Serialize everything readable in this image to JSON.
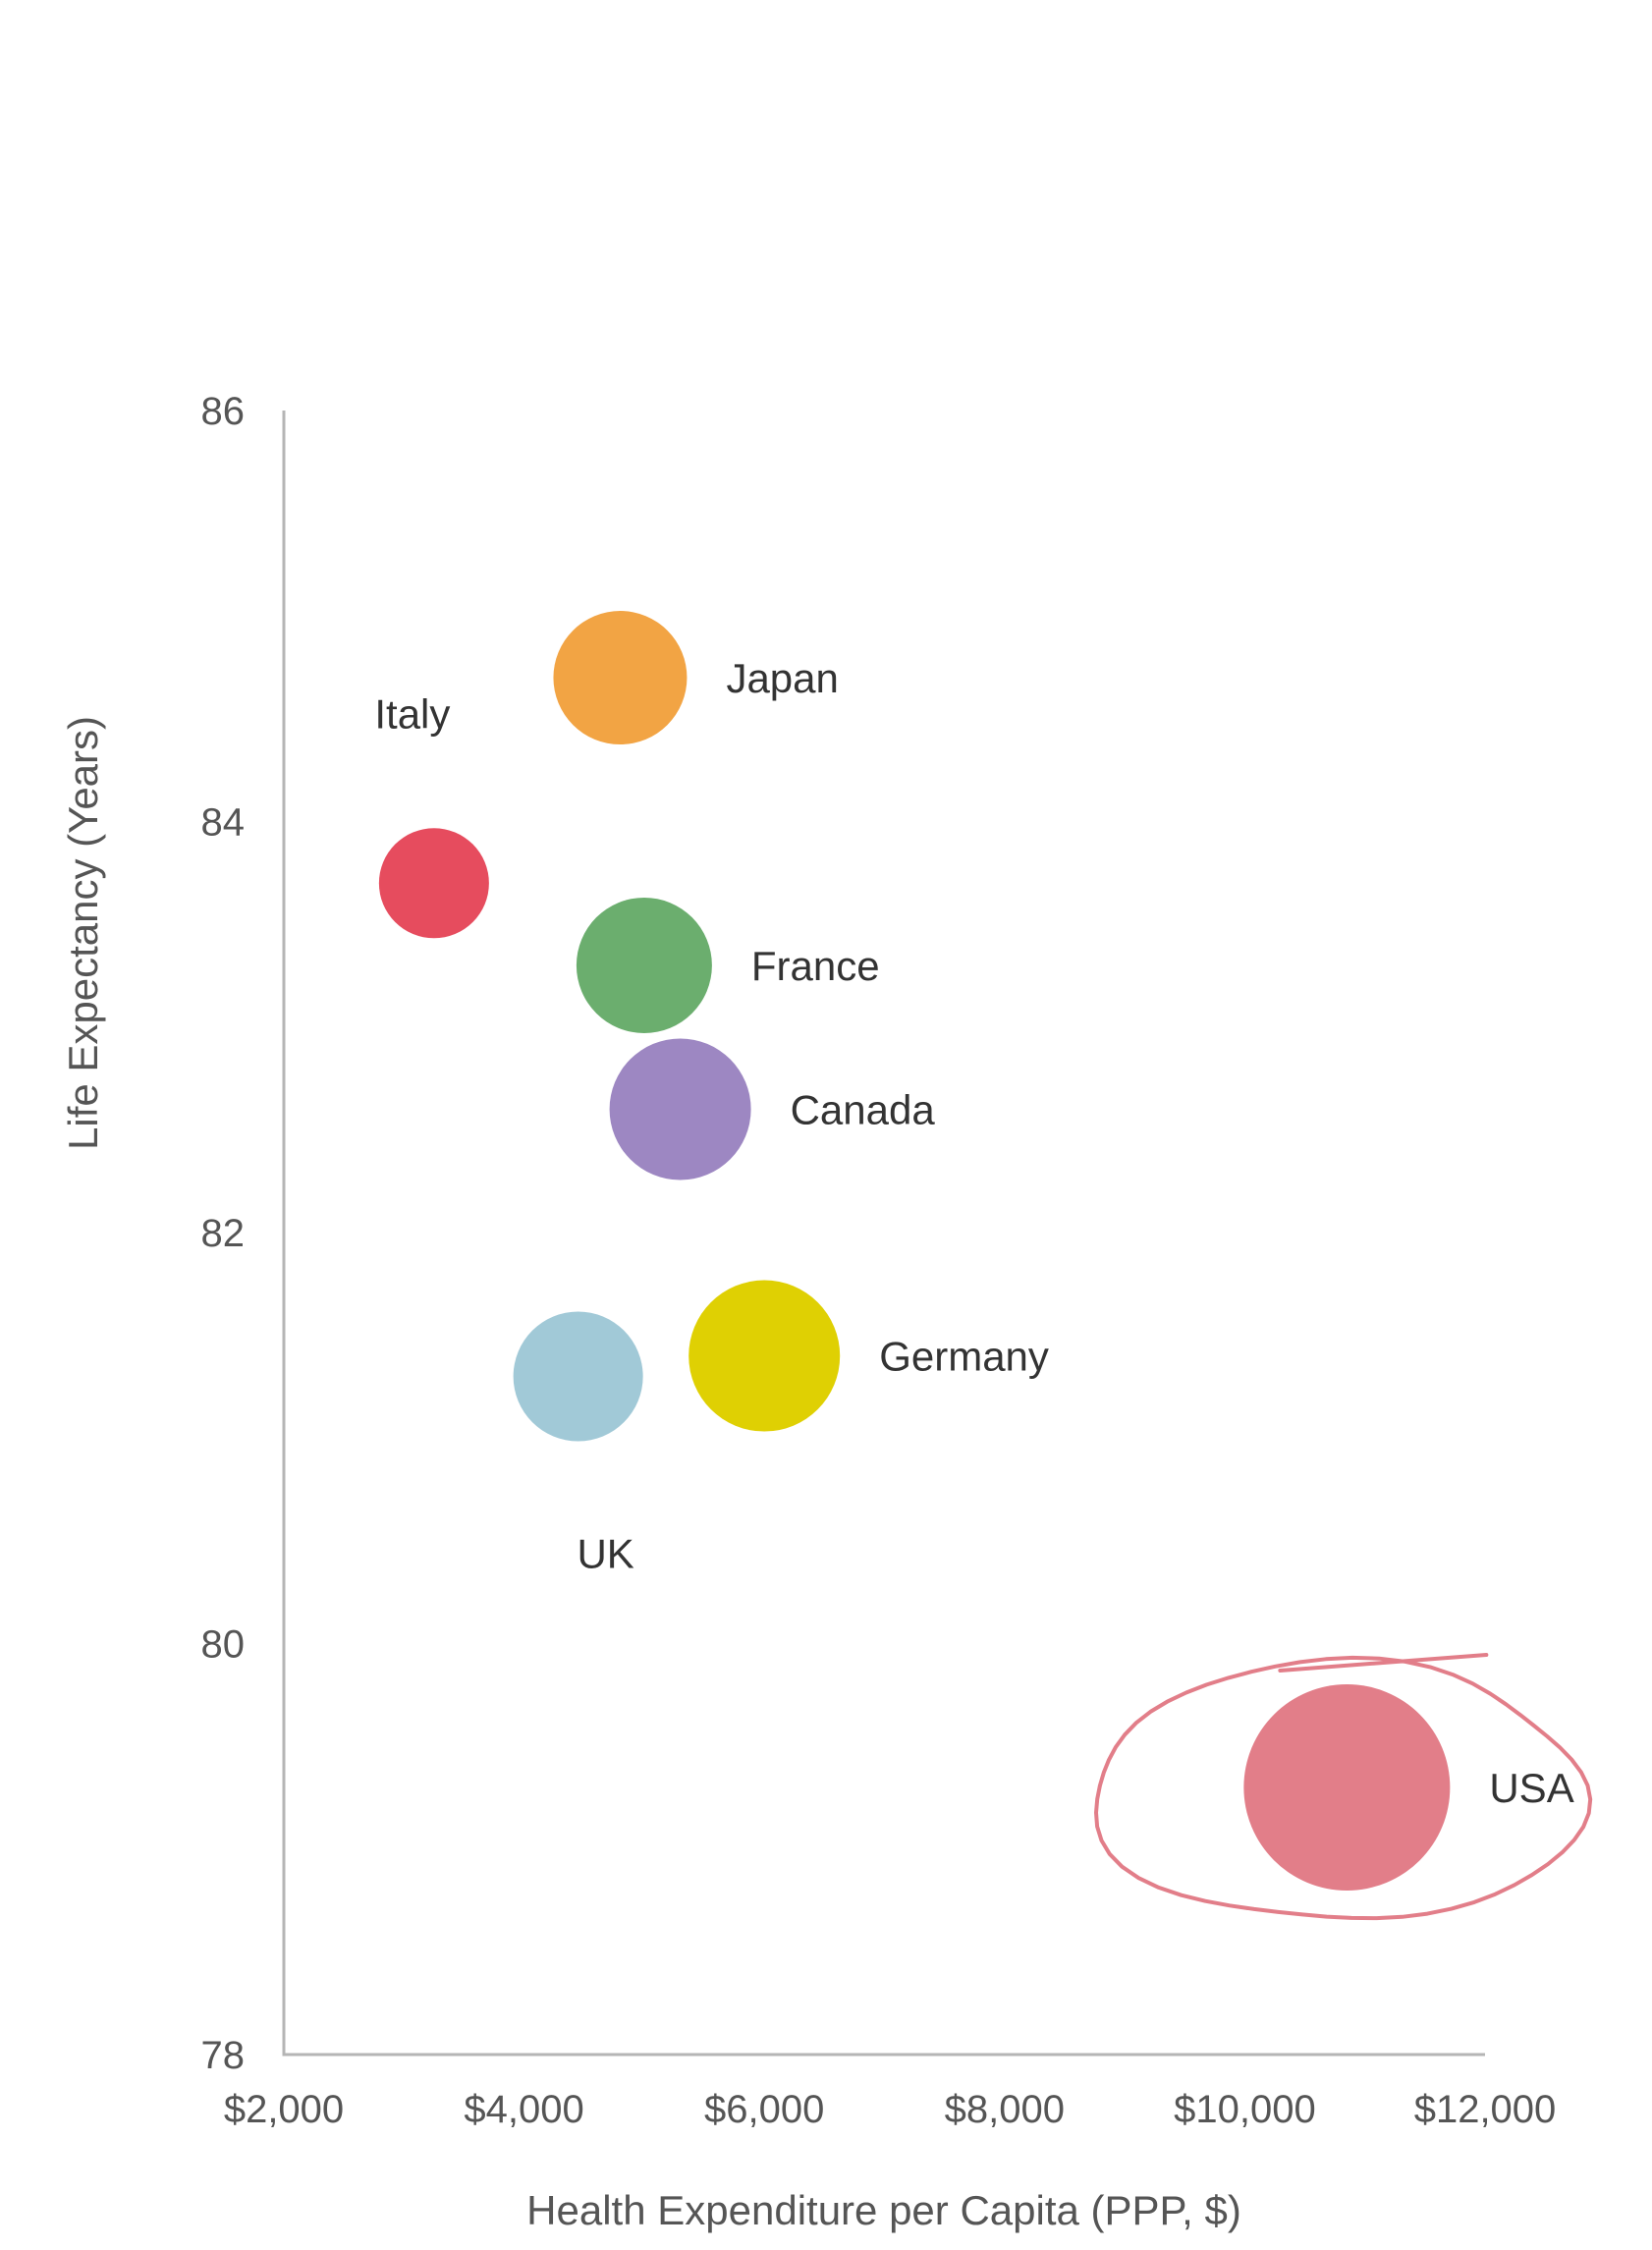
{
  "chart_data": {
    "type": "scatter",
    "xlabel": "Health Expenditure per Capita (PPP, $)",
    "ylabel": "Life Expectancy (Years)",
    "xlim": [
      2000,
      12000
    ],
    "ylim": [
      78,
      86
    ],
    "x_ticks": [
      2000,
      4000,
      6000,
      8000,
      10000,
      12000
    ],
    "x_tick_labels": [
      "$2,000",
      "$4,000",
      "$6,000",
      "$8,000",
      "$10,000",
      "$12,000"
    ],
    "y_ticks": [
      78,
      80,
      82,
      84,
      86
    ],
    "y_tick_labels": [
      "78",
      "80",
      "82",
      "84",
      "86"
    ],
    "grid": false,
    "points": [
      {
        "label": "Japan",
        "x": 4800,
        "y": 84.7,
        "color": "#F2A444",
        "label_position": "right"
      },
      {
        "label": "Italy",
        "x": 3250,
        "y": 83.7,
        "color": "#E64C5E",
        "label_position": "above"
      },
      {
        "label": "France",
        "x": 5000,
        "y": 83.3,
        "color": "#6BAE6E",
        "label_position": "right"
      },
      {
        "label": "Canada",
        "x": 5300,
        "y": 82.6,
        "color": "#9D87C2",
        "label_position": "right"
      },
      {
        "label": "Germany",
        "x": 6000,
        "y": 81.4,
        "color": "#DFD003",
        "label_position": "right"
      },
      {
        "label": "UK",
        "x": 4450,
        "y": 81.3,
        "color": "#A1C9D7",
        "label_position": "below"
      },
      {
        "label": "USA",
        "x": 10850,
        "y": 79.3,
        "color": "#E27E89",
        "label_position": "right",
        "highlighted": true
      }
    ],
    "highlight_color": "#E27E89"
  }
}
